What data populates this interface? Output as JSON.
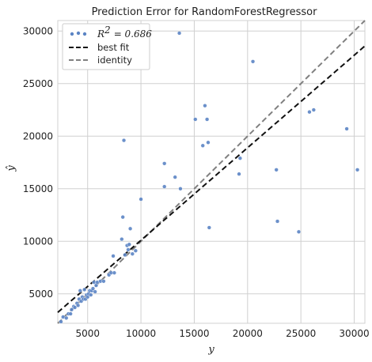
{
  "chart_data": {
    "type": "scatter",
    "title": "Prediction Error for RandomForestRegressor",
    "xlabel": "y",
    "ylabel": "ŷ",
    "xlim": [
      2200,
      31000
    ],
    "ylim": [
      2200,
      31000
    ],
    "xticks": [
      5000,
      10000,
      15000,
      20000,
      25000,
      30000
    ],
    "yticks": [
      5000,
      10000,
      15000,
      20000,
      25000,
      30000
    ],
    "grid": true,
    "legend_position": "top-left",
    "legend": {
      "r2_label": "R",
      "r2_exponent": "2",
      "r2_value": "= 0.686",
      "best_fit": "best fit",
      "identity": "identity"
    },
    "best_fit": {
      "slope": 0.88,
      "intercept": 1300
    },
    "identity": {
      "slope": 1,
      "intercept": 0
    },
    "colors": {
      "points": "#5b84c4",
      "best_fit": "#111111",
      "identity": "#808080",
      "grid": "#d0d0d0"
    },
    "points": [
      {
        "x": 2500,
        "y": 2350
      },
      {
        "x": 2700,
        "y": 2800
      },
      {
        "x": 3000,
        "y": 2700
      },
      {
        "x": 3200,
        "y": 3100
      },
      {
        "x": 3400,
        "y": 3100
      },
      {
        "x": 3500,
        "y": 3500
      },
      {
        "x": 3700,
        "y": 3800
      },
      {
        "x": 3800,
        "y": 3700
      },
      {
        "x": 4000,
        "y": 4100
      },
      {
        "x": 4100,
        "y": 3900
      },
      {
        "x": 4200,
        "y": 4500
      },
      {
        "x": 4300,
        "y": 5300
      },
      {
        "x": 4400,
        "y": 4300
      },
      {
        "x": 4500,
        "y": 4700
      },
      {
        "x": 4600,
        "y": 4500
      },
      {
        "x": 4700,
        "y": 5400
      },
      {
        "x": 4800,
        "y": 4500
      },
      {
        "x": 4900,
        "y": 4900
      },
      {
        "x": 5000,
        "y": 4700
      },
      {
        "x": 5100,
        "y": 5000
      },
      {
        "x": 5200,
        "y": 5300
      },
      {
        "x": 5300,
        "y": 4900
      },
      {
        "x": 5400,
        "y": 5300
      },
      {
        "x": 5500,
        "y": 5500
      },
      {
        "x": 5600,
        "y": 6100
      },
      {
        "x": 5700,
        "y": 5200
      },
      {
        "x": 5800,
        "y": 5800
      },
      {
        "x": 5900,
        "y": 6100
      },
      {
        "x": 6200,
        "y": 6200
      },
      {
        "x": 6500,
        "y": 6200
      },
      {
        "x": 7000,
        "y": 6800
      },
      {
        "x": 7200,
        "y": 7000
      },
      {
        "x": 7400,
        "y": 8600
      },
      {
        "x": 7500,
        "y": 7000
      },
      {
        "x": 8200,
        "y": 10200
      },
      {
        "x": 8300,
        "y": 12300
      },
      {
        "x": 8400,
        "y": 19600
      },
      {
        "x": 8500,
        "y": 8700
      },
      {
        "x": 8700,
        "y": 9600
      },
      {
        "x": 8800,
        "y": 9200
      },
      {
        "x": 8900,
        "y": 9700
      },
      {
        "x": 9000,
        "y": 11200
      },
      {
        "x": 9200,
        "y": 8800
      },
      {
        "x": 9500,
        "y": 9100
      },
      {
        "x": 10000,
        "y": 14000
      },
      {
        "x": 12200,
        "y": 17400
      },
      {
        "x": 12200,
        "y": 15200
      },
      {
        "x": 13200,
        "y": 16100
      },
      {
        "x": 13600,
        "y": 29800
      },
      {
        "x": 13700,
        "y": 15000
      },
      {
        "x": 15100,
        "y": 21600
      },
      {
        "x": 15800,
        "y": 19100
      },
      {
        "x": 16000,
        "y": 22900
      },
      {
        "x": 16200,
        "y": 21600
      },
      {
        "x": 16300,
        "y": 19400
      },
      {
        "x": 16400,
        "y": 11300
      },
      {
        "x": 19200,
        "y": 16400
      },
      {
        "x": 19300,
        "y": 17900
      },
      {
        "x": 20500,
        "y": 27100
      },
      {
        "x": 22700,
        "y": 16800
      },
      {
        "x": 22800,
        "y": 11900
      },
      {
        "x": 24800,
        "y": 10900
      },
      {
        "x": 25800,
        "y": 22300
      },
      {
        "x": 26200,
        "y": 22500
      },
      {
        "x": 29300,
        "y": 20700
      },
      {
        "x": 30300,
        "y": 16800
      }
    ]
  }
}
